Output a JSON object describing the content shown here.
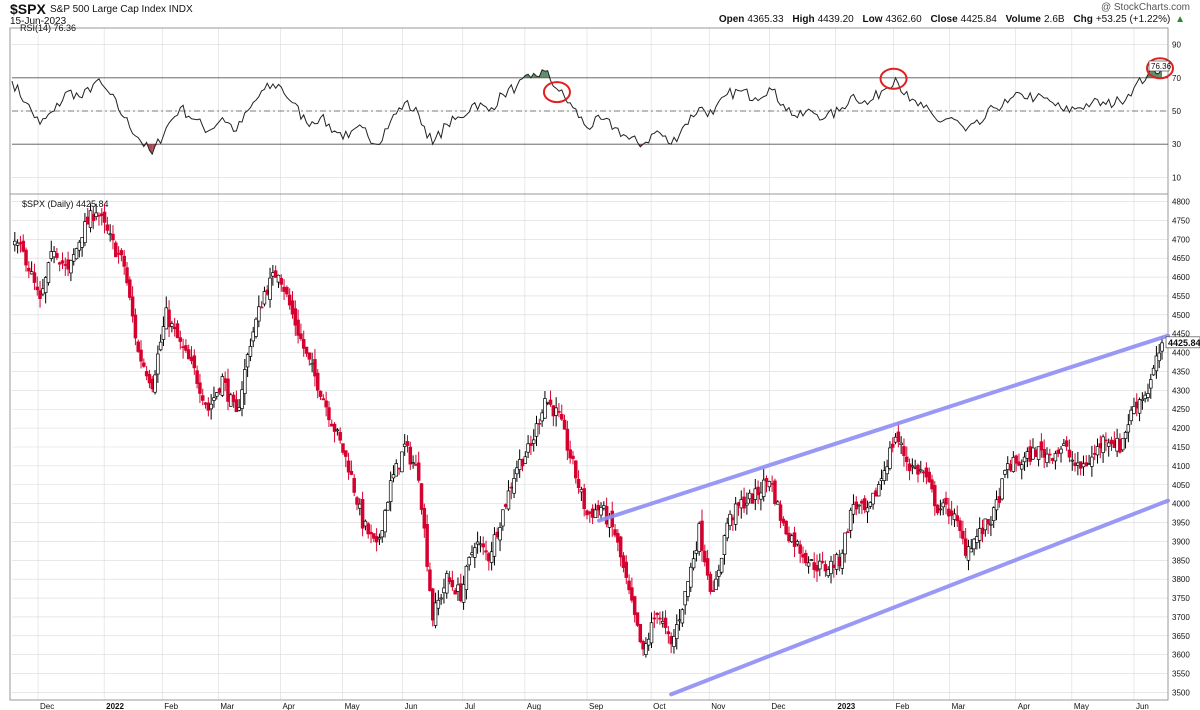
{
  "header": {
    "symbol": "$SPX",
    "name": "S&P 500 Large Cap Index",
    "exchange": "INDX",
    "date": "15-Jun-2023",
    "watermark": "@ StockCharts.com",
    "open_label": "Open",
    "open": "4365.33",
    "high_label": "High",
    "high": "4439.20",
    "low_label": "Low",
    "low": "4362.60",
    "close_label": "Close",
    "close": "4425.84",
    "volume_label": "Volume",
    "volume": "2.6B",
    "chg_label": "Chg",
    "chg": "+53.25 (+1.22%)",
    "chg_arrow": "▲"
  },
  "colors": {
    "up": "#000000",
    "down": "#d6002f",
    "trendline": "#8f8ff5",
    "rsi_line": "#222222",
    "rsi_overbought_fill": "#3d7a4a",
    "rsi_oversold_fill": "#9c2b38",
    "circle": "#e02020",
    "grid": "#d9d9d9"
  },
  "chart_data": [
    {
      "type": "line",
      "title": "RSI(14) 76.36",
      "ylim": [
        0,
        100
      ],
      "yticks": [
        10,
        30,
        50,
        70,
        90
      ],
      "reference_lines": [
        30,
        50,
        70
      ],
      "last_value_label": "76.36",
      "grid": true,
      "x": [
        "2021-11-18",
        "2021-11-25",
        "2021-12-02",
        "2021-12-09",
        "2021-12-16",
        "2021-12-23",
        "2021-12-30",
        "2022-01-06",
        "2022-01-13",
        "2022-01-20",
        "2022-01-27",
        "2022-02-03",
        "2022-02-10",
        "2022-02-17",
        "2022-02-24",
        "2022-03-03",
        "2022-03-10",
        "2022-03-17",
        "2022-03-24",
        "2022-03-31",
        "2022-04-07",
        "2022-04-14",
        "2022-04-21",
        "2022-04-28",
        "2022-05-05",
        "2022-05-12",
        "2022-05-19",
        "2022-05-26",
        "2022-06-02",
        "2022-06-09",
        "2022-06-16",
        "2022-06-23",
        "2022-06-30",
        "2022-07-07",
        "2022-07-14",
        "2022-07-21",
        "2022-07-28",
        "2022-08-04",
        "2022-08-11",
        "2022-08-18",
        "2022-08-25",
        "2022-09-01",
        "2022-09-08",
        "2022-09-15",
        "2022-09-22",
        "2022-09-29",
        "2022-10-06",
        "2022-10-13",
        "2022-10-20",
        "2022-10-27",
        "2022-11-03",
        "2022-11-10",
        "2022-11-17",
        "2022-11-24",
        "2022-12-01",
        "2022-12-08",
        "2022-12-15",
        "2022-12-22",
        "2022-12-29",
        "2023-01-05",
        "2023-01-12",
        "2023-01-19",
        "2023-01-26",
        "2023-02-02",
        "2023-02-09",
        "2023-02-16",
        "2023-02-23",
        "2023-03-02",
        "2023-03-09",
        "2023-03-16",
        "2023-03-23",
        "2023-03-30",
        "2023-04-06",
        "2023-04-13",
        "2023-04-20",
        "2023-04-27",
        "2023-05-04",
        "2023-05-11",
        "2023-05-18",
        "2023-05-25",
        "2023-06-01",
        "2023-06-08",
        "2023-06-15"
      ],
      "values": [
        68,
        55,
        42,
        50,
        62,
        58,
        68,
        60,
        46,
        34,
        24,
        40,
        52,
        45,
        38,
        46,
        38,
        52,
        63,
        66,
        55,
        43,
        46,
        38,
        34,
        40,
        30,
        44,
        55,
        48,
        30,
        42,
        46,
        55,
        50,
        60,
        65,
        70,
        74,
        62,
        52,
        40,
        45,
        40,
        33,
        30,
        38,
        30,
        42,
        52,
        48,
        60,
        62,
        58,
        64,
        54,
        46,
        50,
        46,
        50,
        60,
        54,
        62,
        70,
        56,
        52,
        44,
        46,
        38,
        42,
        52,
        55,
        60,
        58,
        56,
        50,
        52,
        55,
        54,
        56,
        64,
        72,
        76.36
      ],
      "circled": [
        "2022-08-18",
        "2023-02-02",
        "2023-06-15"
      ]
    },
    {
      "type": "candlestick",
      "title": "$SPX (Daily) 4425.84",
      "ylim": [
        3480,
        4820
      ],
      "yticks": [
        3500,
        3550,
        3600,
        3650,
        3700,
        3750,
        3800,
        3850,
        3900,
        3950,
        4000,
        4050,
        4100,
        4150,
        4200,
        4250,
        4300,
        4350,
        4400,
        4450,
        4500,
        4550,
        4600,
        4650,
        4700,
        4750,
        4800
      ],
      "last_price_label": "4425.84",
      "grid": true,
      "x_axis": {
        "start": "2021-11-18",
        "end": "2023-06-15",
        "ticks": [
          {
            "date": "2021-12-01",
            "label": "Dec"
          },
          {
            "date": "2022-01-03",
            "label": "2022"
          },
          {
            "date": "2022-02-01",
            "label": "Feb"
          },
          {
            "date": "2022-03-01",
            "label": "Mar"
          },
          {
            "date": "2022-04-01",
            "label": "Apr"
          },
          {
            "date": "2022-05-02",
            "label": "May"
          },
          {
            "date": "2022-06-01",
            "label": "Jun"
          },
          {
            "date": "2022-07-01",
            "label": "Jul"
          },
          {
            "date": "2022-08-01",
            "label": "Aug"
          },
          {
            "date": "2022-09-01",
            "label": "Sep"
          },
          {
            "date": "2022-10-03",
            "label": "Oct"
          },
          {
            "date": "2022-11-01",
            "label": "Nov"
          },
          {
            "date": "2022-12-01",
            "label": "Dec"
          },
          {
            "date": "2023-01-03",
            "label": "2023"
          },
          {
            "date": "2023-02-01",
            "label": "Feb"
          },
          {
            "date": "2023-03-01",
            "label": "Mar"
          },
          {
            "date": "2023-04-03",
            "label": "Apr"
          },
          {
            "date": "2023-05-01",
            "label": "May"
          },
          {
            "date": "2023-06-01",
            "label": "Jun"
          }
        ]
      },
      "close_series": {
        "x": [
          "2021-11-18",
          "2021-11-25",
          "2021-12-02",
          "2021-12-09",
          "2021-12-16",
          "2021-12-23",
          "2021-12-30",
          "2022-01-06",
          "2022-01-13",
          "2022-01-20",
          "2022-01-27",
          "2022-02-03",
          "2022-02-10",
          "2022-02-17",
          "2022-02-24",
          "2022-03-03",
          "2022-03-10",
          "2022-03-17",
          "2022-03-24",
          "2022-03-31",
          "2022-04-07",
          "2022-04-14",
          "2022-04-21",
          "2022-04-28",
          "2022-05-05",
          "2022-05-12",
          "2022-05-19",
          "2022-05-26",
          "2022-06-02",
          "2022-06-09",
          "2022-06-16",
          "2022-06-23",
          "2022-06-30",
          "2022-07-07",
          "2022-07-14",
          "2022-07-21",
          "2022-07-28",
          "2022-08-04",
          "2022-08-11",
          "2022-08-18",
          "2022-08-25",
          "2022-09-01",
          "2022-09-08",
          "2022-09-15",
          "2022-09-22",
          "2022-09-29",
          "2022-10-06",
          "2022-10-13",
          "2022-10-20",
          "2022-10-27",
          "2022-11-03",
          "2022-11-10",
          "2022-11-17",
          "2022-11-24",
          "2022-12-01",
          "2022-12-08",
          "2022-12-15",
          "2022-12-22",
          "2022-12-29",
          "2023-01-05",
          "2023-01-12",
          "2023-01-19",
          "2023-01-26",
          "2023-02-02",
          "2023-02-09",
          "2023-02-16",
          "2023-02-23",
          "2023-03-02",
          "2023-03-09",
          "2023-03-16",
          "2023-03-23",
          "2023-03-30",
          "2023-04-06",
          "2023-04-13",
          "2023-04-20",
          "2023-04-27",
          "2023-05-04",
          "2023-05-11",
          "2023-05-18",
          "2023-05-25",
          "2023-06-01",
          "2023-06-08",
          "2023-06-15"
        ],
        "values": [
          4700,
          4650,
          4530,
          4680,
          4610,
          4720,
          4780,
          4700,
          4630,
          4400,
          4320,
          4500,
          4420,
          4350,
          4250,
          4330,
          4230,
          4430,
          4560,
          4620,
          4500,
          4390,
          4300,
          4200,
          4100,
          3950,
          3880,
          4050,
          4150,
          4080,
          3700,
          3800,
          3760,
          3900,
          3860,
          3980,
          4100,
          4150,
          4280,
          4230,
          4100,
          3970,
          3990,
          3920,
          3760,
          3600,
          3720,
          3620,
          3760,
          3930,
          3750,
          3950,
          4000,
          4020,
          4070,
          3940,
          3890,
          3840,
          3830,
          3850,
          4000,
          3970,
          4070,
          4180,
          4100,
          4080,
          3990,
          3980,
          3880,
          3920,
          3970,
          4100,
          4110,
          4140,
          4130,
          4150,
          4090,
          4120,
          4180,
          4150,
          4260,
          4300,
          4425.84
        ]
      },
      "trendlines": [
        {
          "start": {
            "date": "2022-09-07",
            "value": 3955
          },
          "end": {
            "date": "2023-06-15",
            "value": 4445
          }
        },
        {
          "start": {
            "date": "2022-10-13",
            "value": 3495
          },
          "end": {
            "date": "2023-06-15",
            "value": 4008
          }
        }
      ]
    }
  ]
}
